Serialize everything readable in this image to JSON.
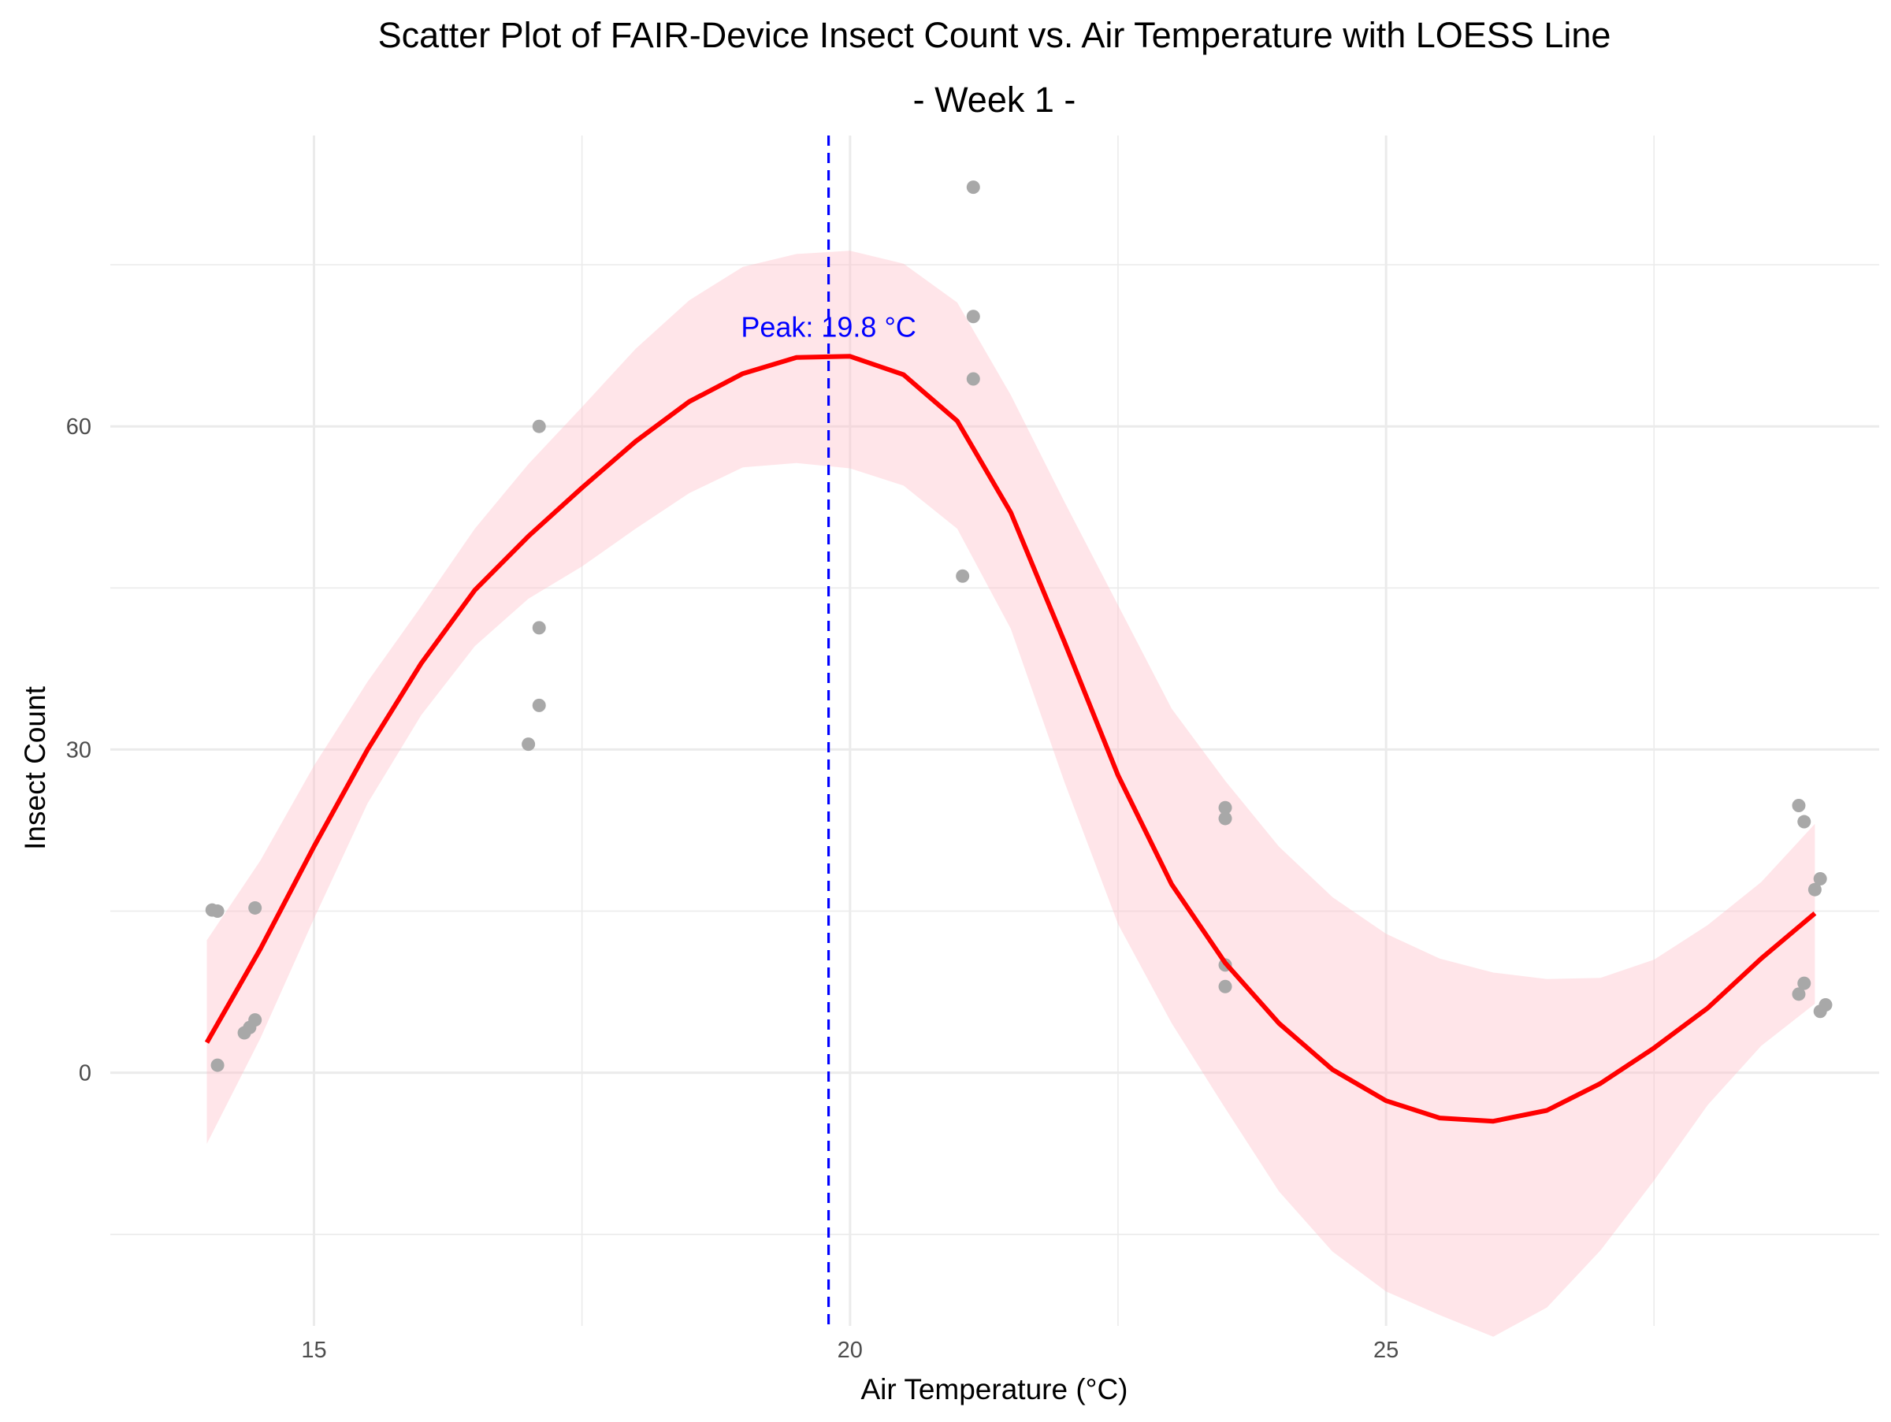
{
  "chart_data": {
    "type": "scatter",
    "title": "Scatter Plot of FAIR-Device Insect Count vs. Air Temperature with LOESS Line",
    "subtitle": "- Week 1 -",
    "xlabel": "Air Temperature (°C)",
    "ylabel": "Insect Count",
    "xlim": [
      13.1,
      29.6
    ],
    "ylim": [
      -23.5,
      87
    ],
    "x_ticks": [
      15,
      20,
      25
    ],
    "x_tick_labels": [
      "15",
      "20",
      "25"
    ],
    "x_minor_ticks": [
      17.5,
      22.5,
      27.5
    ],
    "y_ticks": [
      0,
      30,
      60
    ],
    "y_tick_labels": [
      "0",
      "30",
      "60"
    ],
    "y_minor_ticks": [
      -15,
      15,
      45,
      75
    ],
    "grid": true,
    "legend": "none",
    "colors": {
      "points": "#a8a8a8",
      "loess_line": "#ff0000",
      "confidence_band": "#ffc0cb",
      "peak_line": "#0000ff",
      "grid": "#ebebeb",
      "background": "#ffffff"
    },
    "points": [
      {
        "x": 14.05,
        "y": 15.1
      },
      {
        "x": 14.1,
        "y": 15.0
      },
      {
        "x": 14.45,
        "y": 15.3
      },
      {
        "x": 14.1,
        "y": 0.7
      },
      {
        "x": 14.35,
        "y": 3.7
      },
      {
        "x": 14.4,
        "y": 4.2
      },
      {
        "x": 14.45,
        "y": 4.9
      },
      {
        "x": 17.1,
        "y": 60.0
      },
      {
        "x": 17.1,
        "y": 41.3
      },
      {
        "x": 17.1,
        "y": 34.1
      },
      {
        "x": 17.0,
        "y": 30.5
      },
      {
        "x": 21.15,
        "y": 82.2
      },
      {
        "x": 21.15,
        "y": 70.2
      },
      {
        "x": 21.15,
        "y": 64.4
      },
      {
        "x": 21.05,
        "y": 46.1
      },
      {
        "x": 23.5,
        "y": 24.6
      },
      {
        "x": 23.5,
        "y": 23.6
      },
      {
        "x": 23.5,
        "y": 10.0
      },
      {
        "x": 23.5,
        "y": 8.0
      },
      {
        "x": 28.85,
        "y": 24.8
      },
      {
        "x": 28.9,
        "y": 23.3
      },
      {
        "x": 29.05,
        "y": 18.0
      },
      {
        "x": 29.0,
        "y": 17.0
      },
      {
        "x": 28.9,
        "y": 8.3
      },
      {
        "x": 28.85,
        "y": 7.3
      },
      {
        "x": 29.1,
        "y": 6.3
      },
      {
        "x": 29.05,
        "y": 5.7
      }
    ],
    "loess": {
      "x": [
        14.0,
        14.5,
        15.0,
        15.5,
        16.0,
        16.5,
        17.0,
        17.5,
        18.0,
        18.5,
        19.0,
        19.5,
        20.0,
        20.5,
        21.0,
        21.5,
        22.0,
        22.5,
        23.0,
        23.5,
        24.0,
        24.5,
        25.0,
        25.5,
        26.0,
        26.5,
        27.0,
        27.5,
        28.0,
        28.5,
        29.0
      ],
      "y": [
        2.8,
        11.5,
        21.0,
        30.0,
        38.0,
        44.8,
        49.8,
        54.3,
        58.6,
        62.3,
        64.9,
        66.4,
        66.5,
        64.8,
        60.5,
        52.0,
        40.0,
        27.6,
        17.5,
        10.2,
        4.6,
        0.3,
        -2.6,
        -4.2,
        -4.5,
        -3.5,
        -1.0,
        2.3,
        6.0,
        10.6,
        14.8
      ],
      "lower": [
        -6.6,
        3.2,
        14.3,
        25.0,
        33.2,
        39.6,
        44.0,
        47.0,
        50.5,
        53.8,
        56.2,
        56.6,
        56.1,
        54.5,
        50.5,
        41.2,
        27.0,
        13.8,
        4.6,
        -3.3,
        -11.0,
        -16.6,
        -20.3,
        -22.5,
        -24.5,
        -21.8,
        -16.5,
        -10.0,
        -3.0,
        2.5,
        6.4
      ],
      "upper": [
        12.3,
        19.7,
        28.5,
        36.3,
        43.3,
        50.5,
        56.5,
        61.8,
        67.2,
        71.7,
        74.8,
        76.0,
        76.3,
        75.1,
        71.5,
        62.9,
        53.0,
        43.4,
        33.8,
        27.1,
        21.0,
        16.3,
        12.9,
        10.6,
        9.3,
        8.7,
        8.8,
        10.5,
        13.7,
        17.7,
        23.1
      ]
    },
    "peak": {
      "x": 19.8,
      "label": "Peak: 19.8 °C"
    }
  }
}
